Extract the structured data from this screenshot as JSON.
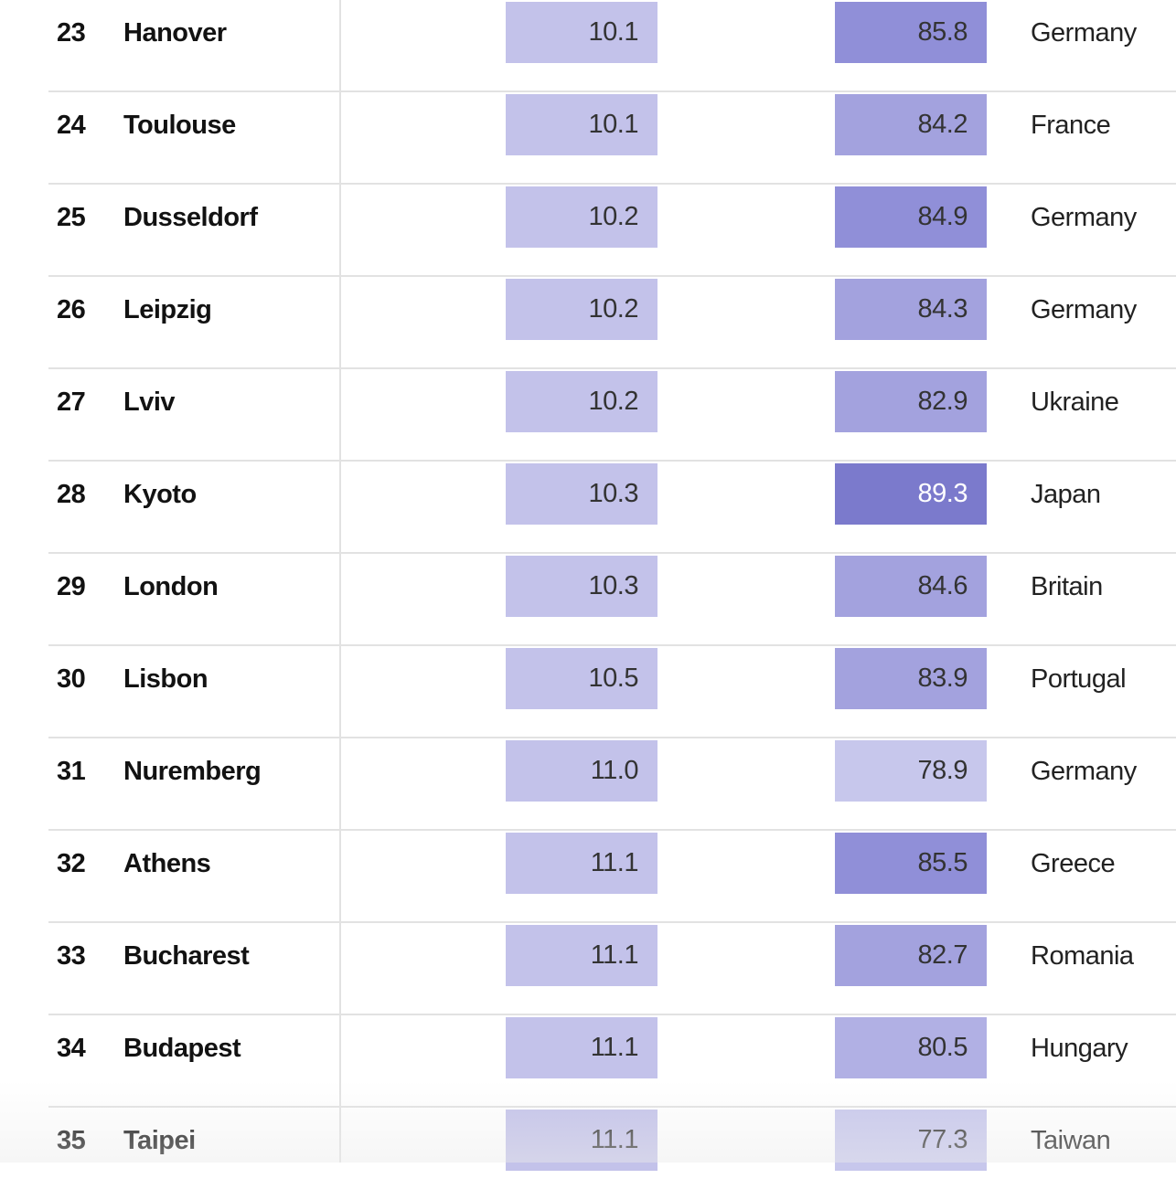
{
  "chart_data": {
    "type": "table",
    "columns": [
      "rank",
      "city",
      "value_a",
      "value_b",
      "country"
    ],
    "rows": [
      {
        "rank": "23",
        "city": "Hanover",
        "value_a": "10.1",
        "value_b": "85.8",
        "country": "Germany"
      },
      {
        "rank": "24",
        "city": "Toulouse",
        "value_a": "10.1",
        "value_b": "84.2",
        "country": "France"
      },
      {
        "rank": "25",
        "city": "Dusseldorf",
        "value_a": "10.2",
        "value_b": "84.9",
        "country": "Germany"
      },
      {
        "rank": "26",
        "city": "Leipzig",
        "value_a": "10.2",
        "value_b": "84.3",
        "country": "Germany"
      },
      {
        "rank": "27",
        "city": "Lviv",
        "value_a": "10.2",
        "value_b": "82.9",
        "country": "Ukraine"
      },
      {
        "rank": "28",
        "city": "Kyoto",
        "value_a": "10.3",
        "value_b": "89.3",
        "country": "Japan"
      },
      {
        "rank": "29",
        "city": "London",
        "value_a": "10.3",
        "value_b": "84.6",
        "country": "Britain"
      },
      {
        "rank": "30",
        "city": "Lisbon",
        "value_a": "10.5",
        "value_b": "83.9",
        "country": "Portugal"
      },
      {
        "rank": "31",
        "city": "Nuremberg",
        "value_a": "11.0",
        "value_b": "78.9",
        "country": "Germany"
      },
      {
        "rank": "32",
        "city": "Athens",
        "value_a": "11.1",
        "value_b": "85.5",
        "country": "Greece"
      },
      {
        "rank": "33",
        "city": "Bucharest",
        "value_a": "11.1",
        "value_b": "82.7",
        "country": "Romania"
      },
      {
        "rank": "34",
        "city": "Budapest",
        "value_a": "11.1",
        "value_b": "80.5",
        "country": "Hungary"
      },
      {
        "rank": "35",
        "city": "Taipei",
        "value_a": "11.1",
        "value_b": "77.3",
        "country": "Taiwan"
      }
    ],
    "colors": {
      "value_a_fill": "#c3c2ea",
      "value_b_palette": {
        "lightest": "#c7c7ec",
        "light": "#b1b0e4",
        "medium": "#a3a2de",
        "dark": "#908fd8",
        "darkest": "#7b7acc"
      },
      "text_dark": "#333333",
      "text_on_dark": "#ffffff",
      "gridline": "#e2e2e2"
    }
  }
}
